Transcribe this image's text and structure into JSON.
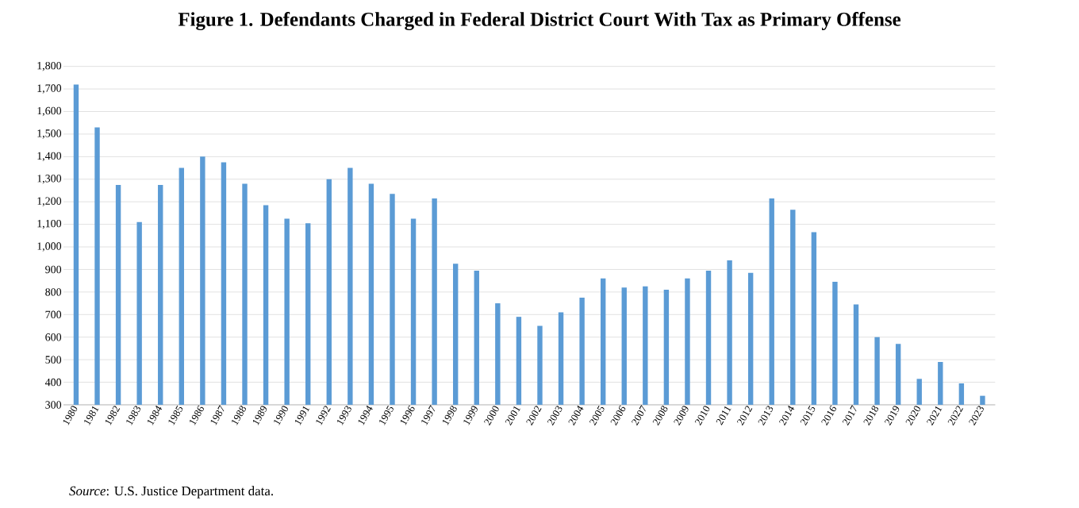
{
  "chart_data": {
    "type": "bar",
    "title": "Figure 1. Defendants Charged in Federal District Court With Tax as Primary Offense",
    "categories": [
      "1980",
      "1981",
      "1982",
      "1983",
      "1984",
      "1985",
      "1986",
      "1987",
      "1988",
      "1989",
      "1990",
      "1991",
      "1992",
      "1993",
      "1994",
      "1995",
      "1996",
      "1997",
      "1998",
      "1999",
      "2000",
      "2001",
      "2002",
      "2003",
      "2004",
      "2005",
      "2006",
      "2007",
      "2008",
      "2009",
      "2010",
      "2011",
      "2012",
      "2013",
      "2014",
      "2015",
      "2016",
      "2017",
      "2018",
      "2019",
      "2020",
      "2021",
      "2022",
      "2023"
    ],
    "values": [
      1720,
      1530,
      1275,
      1110,
      1275,
      1350,
      1400,
      1375,
      1280,
      1185,
      1125,
      1105,
      1300,
      1350,
      1280,
      1235,
      1125,
      1215,
      925,
      895,
      750,
      690,
      650,
      710,
      775,
      860,
      820,
      825,
      810,
      860,
      895,
      940,
      885,
      1215,
      1165,
      1065,
      845,
      745,
      600,
      570,
      415,
      490,
      395,
      340
    ],
    "color": "#5b9bd5",
    "ylim": [
      300,
      1800
    ],
    "yticks": [
      {
        "value": 300,
        "label": "300"
      },
      {
        "value": 400,
        "label": "400"
      },
      {
        "value": 500,
        "label": "500"
      },
      {
        "value": 600,
        "label": "600"
      },
      {
        "value": 700,
        "label": "700"
      },
      {
        "value": 800,
        "label": "800"
      },
      {
        "value": 900,
        "label": "900"
      },
      {
        "value": 1000,
        "label": "1,000"
      },
      {
        "value": 1100,
        "label": "1,100"
      },
      {
        "value": 1200,
        "label": "1,200"
      },
      {
        "value": 1300,
        "label": "1,300"
      },
      {
        "value": 1400,
        "label": "1,400"
      },
      {
        "value": 1500,
        "label": "1,500"
      },
      {
        "value": 1600,
        "label": "1,600"
      },
      {
        "value": 1700,
        "label": "1,700"
      },
      {
        "value": 1800,
        "label": "1,800"
      }
    ],
    "grid": "y",
    "annotations": [
      "*Source*: U.S. Justice Department data."
    ]
  }
}
